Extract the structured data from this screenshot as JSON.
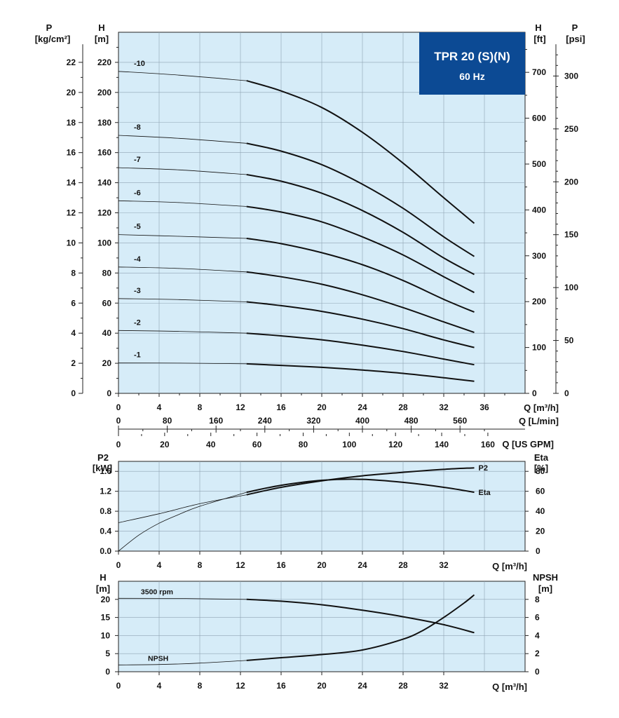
{
  "title_box": {
    "title": "TPR 20 (S)(N)",
    "subtitle": "60 Hz",
    "color": "#0c4a94"
  },
  "colors": {
    "plot_bg": "#d6ecf8",
    "grid": "#8fa3b3",
    "curve": "#111111"
  },
  "chart_data": [
    {
      "type": "line",
      "name": "head",
      "x_axes": [
        {
          "label": "Q [m³/h]",
          "ticks": [
            "0",
            "4",
            "8",
            "12",
            "16",
            "20",
            "24",
            "28",
            "32",
            "36"
          ]
        },
        {
          "label": "Q [L/min]",
          "ticks": [
            "0",
            "80",
            "160",
            "240",
            "320",
            "400",
            "480",
            "560"
          ]
        },
        {
          "label": "Q [US GPM]",
          "ticks": [
            "0",
            "20",
            "40",
            "60",
            "80",
            "100",
            "120",
            "140",
            "160"
          ]
        }
      ],
      "y_axes": {
        "p_kg": {
          "label_top": "P",
          "label": "[kg/cm²]",
          "ticks": [
            "0",
            "2",
            "4",
            "6",
            "8",
            "10",
            "12",
            "14",
            "16",
            "18",
            "20",
            "22"
          ]
        },
        "h_m": {
          "label_top": "H",
          "label": "[m]",
          "ticks": [
            "0",
            "20",
            "40",
            "60",
            "80",
            "100",
            "120",
            "140",
            "160",
            "180",
            "200",
            "220"
          ]
        },
        "h_ft": {
          "label_top": "H",
          "label": "[ft]",
          "ticks": [
            "0",
            "100",
            "200",
            "300",
            "400",
            "500",
            "600",
            "700"
          ]
        },
        "p_psi": {
          "label_top": "P",
          "label": "[psi]",
          "ticks": [
            "0",
            "50",
            "100",
            "150",
            "200",
            "250",
            "300"
          ]
        }
      },
      "xlim": [
        0,
        40
      ],
      "ylim": [
        0,
        240
      ],
      "grid": true,
      "highlight_from_x": 12.6,
      "series": [
        {
          "name": "-1",
          "x": [
            0,
            6,
            12.6,
            16,
            20,
            24,
            28,
            32,
            35
          ],
          "y": [
            20.2,
            20.1,
            19.6,
            18.6,
            17.3,
            15.5,
            13.3,
            10.4,
            8.0
          ]
        },
        {
          "name": "-2",
          "x": [
            0,
            6,
            12.6,
            16,
            20,
            24,
            28,
            32,
            35
          ],
          "y": [
            41.8,
            41.2,
            40.0,
            38.2,
            35.6,
            32.0,
            27.8,
            22.8,
            19.0
          ]
        },
        {
          "name": "-3",
          "x": [
            0,
            6,
            12.6,
            16,
            20,
            24,
            28,
            32,
            35
          ],
          "y": [
            63.0,
            62.3,
            60.8,
            58.3,
            54.5,
            49.3,
            43.0,
            35.5,
            30.5
          ]
        },
        {
          "name": "-4",
          "x": [
            0,
            6,
            12.6,
            16,
            20,
            24,
            28,
            32,
            35
          ],
          "y": [
            84.0,
            83.0,
            80.7,
            77.5,
            72.5,
            65.5,
            57.0,
            47.5,
            40.5
          ]
        },
        {
          "name": "-5",
          "x": [
            0,
            6,
            12.6,
            16,
            20,
            24,
            28,
            32,
            35
          ],
          "y": [
            105.5,
            104.4,
            103.0,
            99.5,
            93.5,
            85.5,
            75.0,
            62.5,
            54.0
          ]
        },
        {
          "name": "-6",
          "x": [
            0,
            6,
            12.6,
            16,
            20,
            24,
            28,
            32,
            35
          ],
          "y": [
            128.0,
            126.8,
            124.2,
            120.5,
            114.0,
            104.0,
            92.0,
            77.5,
            67.0
          ]
        },
        {
          "name": "-7",
          "x": [
            0,
            6,
            12.6,
            16,
            20,
            24,
            28,
            32,
            35
          ],
          "y": [
            150.0,
            148.5,
            145.4,
            141.0,
            133.0,
            121.5,
            107.0,
            90.0,
            79.0
          ]
        },
        {
          "name": "-8",
          "x": [
            0,
            6,
            12.6,
            16,
            20,
            24,
            28,
            32,
            35
          ],
          "y": [
            171.5,
            169.5,
            166.2,
            161.0,
            152.0,
            139.0,
            123.0,
            104.0,
            91.0
          ]
        },
        {
          "name": "-10",
          "x": [
            0,
            6,
            12.6,
            16,
            20,
            24,
            28,
            32,
            35
          ],
          "y": [
            214.0,
            211.5,
            207.8,
            201.0,
            190.0,
            173.5,
            153.0,
            130.0,
            113.0
          ]
        }
      ]
    },
    {
      "type": "line",
      "name": "power_efficiency",
      "y_left": {
        "label_top": "P2",
        "label": "[kW]",
        "ticks": [
          "0.0",
          "0.4",
          "0.8",
          "1.2",
          "1.6"
        ]
      },
      "y_right": {
        "label_top": "Eta",
        "label": "[%]",
        "ticks": [
          "0",
          "20",
          "40",
          "60",
          "80"
        ]
      },
      "x_axis": {
        "label": "Q [m³/h]",
        "ticks": [
          "0",
          "4",
          "8",
          "12",
          "16",
          "20",
          "24",
          "28",
          "32"
        ]
      },
      "xlim": [
        0,
        40
      ],
      "ylim_left": [
        0,
        1.8
      ],
      "ylim_right": [
        0,
        90
      ],
      "grid": true,
      "series": [
        {
          "name": "P2",
          "axis": "left",
          "x": [
            0,
            4,
            8,
            12.6,
            16,
            20,
            24,
            28,
            32,
            35
          ],
          "y": [
            0.57,
            0.75,
            0.95,
            1.13,
            1.28,
            1.41,
            1.51,
            1.58,
            1.64,
            1.67
          ]
        },
        {
          "name": "Eta",
          "axis": "right",
          "x": [
            0,
            2,
            4,
            6,
            8,
            12.6,
            16,
            20,
            24,
            28,
            32,
            35
          ],
          "y": [
            0,
            16,
            28,
            37,
            45,
            59,
            66,
            71,
            72,
            69,
            64,
            59
          ]
        }
      ]
    },
    {
      "type": "line",
      "name": "head_npsh",
      "y_left": {
        "label_top": "H",
        "label": "[m]",
        "ticks": [
          "0",
          "5",
          "10",
          "15",
          "20"
        ]
      },
      "y_right": {
        "label_top": "NPSH",
        "label": "[m]",
        "ticks": [
          "0",
          "2",
          "4",
          "6",
          "8"
        ]
      },
      "x_axis": {
        "label": "Q [m³/h]",
        "ticks": [
          "0",
          "4",
          "8",
          "12",
          "16",
          "20",
          "24",
          "28",
          "32"
        ]
      },
      "xlim": [
        0,
        40
      ],
      "ylim_left": [
        0,
        25
      ],
      "ylim_right": [
        0,
        10
      ],
      "grid": true,
      "series": [
        {
          "name": "3500 rpm",
          "axis": "left",
          "x": [
            0,
            6,
            12.6,
            16,
            20,
            24,
            28,
            32,
            35
          ],
          "y": [
            20.3,
            20.25,
            20.0,
            19.5,
            18.5,
            17.0,
            15.2,
            13.0,
            10.8
          ]
        },
        {
          "name": "NPSH",
          "axis": "right",
          "x": [
            0,
            4,
            8,
            12.6,
            16,
            20,
            24,
            28,
            30,
            32,
            34,
            35
          ],
          "y": [
            0.75,
            0.8,
            0.95,
            1.25,
            1.55,
            1.9,
            2.4,
            3.6,
            4.6,
            6.0,
            7.6,
            8.5
          ]
        }
      ]
    }
  ]
}
